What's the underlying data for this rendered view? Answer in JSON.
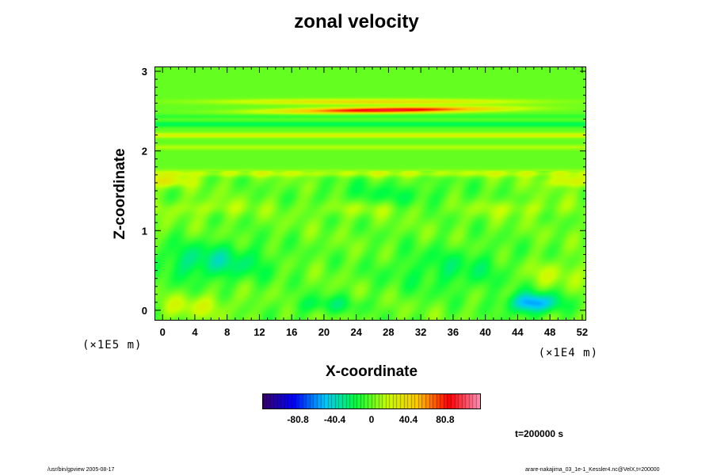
{
  "chart_data": {
    "type": "heatmap",
    "title": "zonal velocity",
    "xlabel": "X-coordinate",
    "ylabel": "Z-coordinate",
    "x_scale_note": "(×1E4 m)",
    "y_scale_note": "(×1E5 m)",
    "xlim": [
      -1,
      52.5
    ],
    "ylim": [
      -0.13,
      3.06
    ],
    "x_ticks": [
      "0",
      "4",
      "8",
      "12",
      "16",
      "20",
      "24",
      "28",
      "32",
      "36",
      "40",
      "44",
      "48",
      "52"
    ],
    "y_ticks": [
      "0",
      "1",
      "2",
      "3"
    ],
    "colorbar": {
      "range": [
        -120,
        120
      ],
      "tick_values": [
        -80.8,
        -40.4,
        0,
        40.4,
        80.8
      ],
      "tick_labels": [
        "-80.8",
        "-40.4",
        "0",
        "40.4",
        "80.8"
      ],
      "colormap": "rainbow",
      "colors": [
        "#3a006a",
        "#0000ff",
        "#00c8ff",
        "#00ff40",
        "#c8ff00",
        "#ffc800",
        "#ff0000",
        "#ff8fb4"
      ]
    },
    "features": [
      {
        "description_value": "jet core",
        "x_range": [
          16,
          40
        ],
        "z": 2.52,
        "value": 95
      },
      {
        "z": 2.62,
        "value": 45
      },
      {
        "z": 2.18,
        "value": 25
      },
      {
        "z": 2.32,
        "value": -20
      },
      {
        "z": 1.62,
        "value": 40
      },
      {
        "x": 46,
        "z": 0.08,
        "value": -60
      },
      {
        "x": 6,
        "z": 0.6,
        "value": -30
      }
    ]
  },
  "annotations": {
    "time": "t=200000 s",
    "footer_left": "/usr/bin/gpview 2005-08-17",
    "footer_right": "arare-nakajima_03_1e-1_Kessler4.nc@VelX,t=200000"
  }
}
